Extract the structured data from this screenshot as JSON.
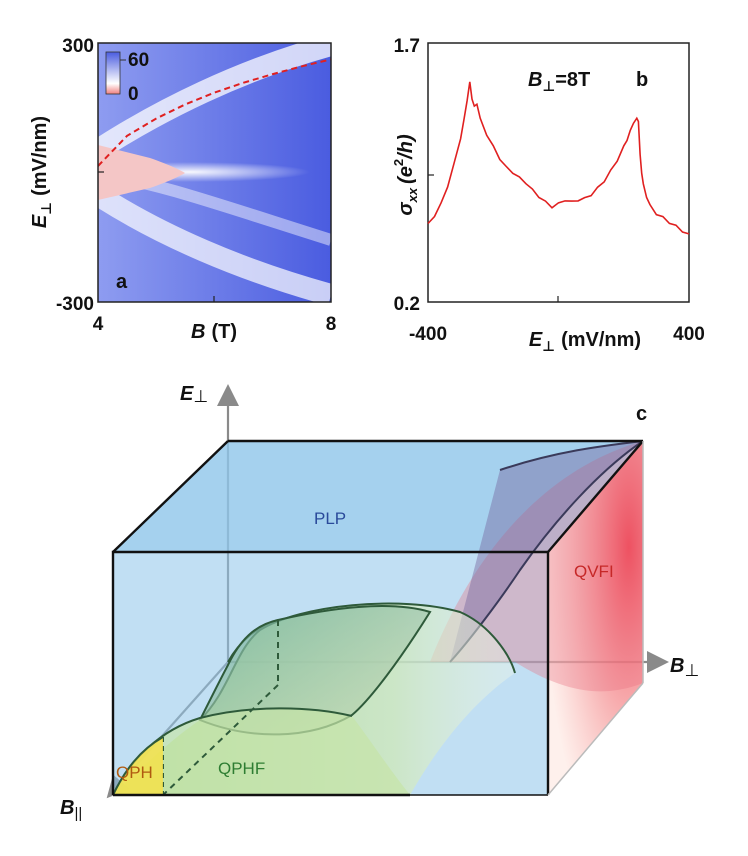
{
  "panel_a": {
    "label": "a",
    "x_axis": {
      "label_var": "B",
      "label_unit": "(T)",
      "ticks": [
        "4",
        "8"
      ],
      "range": [
        4,
        8
      ]
    },
    "y_axis": {
      "label_var": "E",
      "label_sub": "⊥",
      "label_unit": "(mV/nm)",
      "ticks": [
        "300",
        "-300"
      ],
      "range": [
        -300,
        300
      ]
    },
    "colorbar": {
      "max_label": "60",
      "min_label": "0",
      "range": [
        0,
        60
      ]
    }
  },
  "panel_b": {
    "label": "b",
    "annotation_var": "B",
    "annotation_sub": "⊥",
    "annotation_value": "=8T",
    "x_axis": {
      "label_var": "E",
      "label_sub": "⊥",
      "label_unit": "(mV/nm)",
      "ticks": [
        "-400",
        "400"
      ],
      "range": [
        -400,
        400
      ]
    },
    "y_axis": {
      "label_var": "σ",
      "label_sub": "xx",
      "label_unit": "(e",
      "label_sup": "2",
      "label_tail": "/h)",
      "ticks": [
        "1.7",
        "0.2"
      ],
      "range": [
        0.2,
        1.7
      ]
    }
  },
  "panel_c": {
    "label": "c",
    "axis_e": "E",
    "axis_e_sub": "⊥",
    "axis_bperp": "B",
    "axis_bperp_sub": "⊥",
    "axis_bpar": "B",
    "axis_bpar_sub": "||",
    "phases": [
      "PLP",
      "QVFI",
      "QPHF",
      "QPH"
    ]
  },
  "colors": {
    "heatmap_high": "#4a5ce0",
    "heatmap_low": "#ffffff",
    "heatmap_neg": "#f4c6c6",
    "dashed_boundary": "#e02020",
    "trace": "#e02020",
    "plp": "#8ec5ea",
    "qvfi": "#f04050",
    "qphf": "#bfe0a0",
    "qph": "#f5e24a",
    "phase_text_plp": "#2a4a9a",
    "phase_text_qvfi": "#c62828",
    "phase_text_qphf": "#2e7d32",
    "phase_text_qph": "#b05a10"
  },
  "chart_data": [
    {
      "type": "heatmap",
      "title": "",
      "xlabel": "B (T)",
      "ylabel": "E⊥ (mV/nm)",
      "xlim": [
        4,
        8
      ],
      "ylim": [
        -300,
        300
      ],
      "colorbar_range": [
        0,
        60
      ],
      "dashed_boundary": {
        "x": [
          4.0,
          4.5,
          5.0,
          5.5,
          6.0,
          6.5,
          7.0,
          7.5,
          8.0
        ],
        "y": [
          15,
          85,
          125,
          158,
          185,
          208,
          228,
          246,
          262
        ]
      },
      "annotations": [
        "a"
      ]
    },
    {
      "type": "line",
      "title": "",
      "xlabel": "E⊥ (mV/nm)",
      "ylabel": "σxx (e²/h)",
      "xlim": [
        -400,
        400
      ],
      "ylim": [
        0.2,
        1.7
      ],
      "annotations": [
        "B⊥=8T",
        "b"
      ],
      "series": [
        {
          "name": "B⊥=8T",
          "x": [
            -400,
            -380,
            -360,
            -340,
            -320,
            -300,
            -290,
            -280,
            -272,
            -265,
            -258,
            -250,
            -240,
            -220,
            -200,
            -180,
            -160,
            -140,
            -120,
            -100,
            -80,
            -60,
            -40,
            -20,
            0,
            20,
            40,
            60,
            80,
            100,
            120,
            140,
            160,
            180,
            200,
            210,
            220,
            230,
            240,
            245,
            250,
            255,
            260,
            270,
            280,
            300,
            320,
            340,
            360,
            380,
            400
          ],
          "y": [
            0.65,
            0.7,
            0.77,
            0.87,
            1.0,
            1.15,
            1.25,
            1.37,
            1.47,
            1.38,
            1.33,
            1.35,
            1.26,
            1.17,
            1.1,
            1.03,
            0.98,
            0.95,
            0.92,
            0.89,
            0.85,
            0.81,
            0.78,
            0.75,
            0.77,
            0.79,
            0.78,
            0.79,
            0.8,
            0.82,
            0.86,
            0.9,
            0.96,
            1.02,
            1.1,
            1.14,
            1.19,
            1.24,
            1.26,
            1.25,
            1.05,
            0.95,
            0.88,
            0.81,
            0.76,
            0.71,
            0.69,
            0.66,
            0.64,
            0.61,
            0.59
          ]
        }
      ]
    },
    {
      "type": "diagram",
      "title": "",
      "axes": [
        "E⊥",
        "B⊥",
        "B||"
      ],
      "regions": [
        "PLP",
        "QVFI",
        "QPHF",
        "QPH"
      ],
      "annotations": [
        "c"
      ]
    }
  ]
}
